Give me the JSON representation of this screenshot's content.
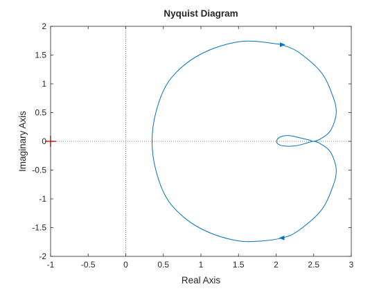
{
  "chart_data": {
    "type": "line",
    "title": "Nyquist Diagram",
    "xlabel": "Real Axis",
    "ylabel": "Imaginary Axis",
    "xlim": [
      -1,
      3
    ],
    "ylim": [
      -2,
      2
    ],
    "xticks": [
      -1,
      -0.5,
      0,
      0.5,
      1,
      1.5,
      2,
      2.5,
      3
    ],
    "xtick_labels": [
      "-1",
      "-0.5",
      "0",
      "0.5",
      "1",
      "1.5",
      "2",
      "2.5",
      "3"
    ],
    "yticks": [
      2,
      1.5,
      1,
      0.5,
      0,
      -0.5,
      -1,
      -1.5,
      -2
    ],
    "ytick_labels": [
      "2",
      "1.5",
      "1",
      "0.5",
      "0",
      "-0.5",
      "-1",
      "-1.5",
      "-2"
    ],
    "grid": false,
    "reference_lines": {
      "x": 0,
      "y": 0,
      "style": "dotted"
    },
    "critical_point": {
      "x": -1,
      "y": 0,
      "marker": "+",
      "color": "#ff0000"
    },
    "series": [
      {
        "color": "#0072bd",
        "points": [
          [
            2.08,
            1.68
          ],
          [
            1.72,
            1.74
          ],
          [
            1.45,
            1.72
          ],
          [
            1.1,
            1.58
          ],
          [
            0.8,
            1.35
          ],
          [
            0.55,
            1.0
          ],
          [
            0.4,
            0.5
          ],
          [
            0.35,
            0.0
          ],
          [
            0.4,
            -0.5
          ],
          [
            0.55,
            -1.0
          ],
          [
            0.8,
            -1.35
          ],
          [
            1.1,
            -1.58
          ],
          [
            1.45,
            -1.72
          ],
          [
            1.72,
            -1.74
          ],
          [
            2.08,
            -1.68
          ],
          [
            2.3,
            -1.55
          ],
          [
            2.6,
            -1.2
          ],
          [
            2.75,
            -0.8
          ],
          [
            2.8,
            -0.5
          ],
          [
            2.73,
            -0.2
          ],
          [
            2.6,
            -0.05
          ],
          [
            2.5,
            0.0
          ],
          [
            2.38,
            -0.04
          ],
          [
            2.25,
            -0.08
          ],
          [
            2.1,
            -0.08
          ],
          [
            2.02,
            -0.04
          ],
          [
            2.01,
            0.02
          ],
          [
            2.06,
            0.08
          ],
          [
            2.18,
            0.1
          ],
          [
            2.32,
            0.06
          ],
          [
            2.45,
            0.02
          ],
          [
            2.5,
            0.0
          ],
          [
            2.6,
            0.05
          ],
          [
            2.73,
            0.2
          ],
          [
            2.8,
            0.5
          ],
          [
            2.75,
            0.8
          ],
          [
            2.6,
            1.2
          ],
          [
            2.3,
            1.55
          ],
          [
            2.08,
            1.68
          ]
        ]
      }
    ],
    "direction_arrows": [
      {
        "x": 2.08,
        "y": 1.68,
        "direction": "right"
      },
      {
        "x": 2.08,
        "y": -1.68,
        "direction": "left"
      }
    ]
  }
}
